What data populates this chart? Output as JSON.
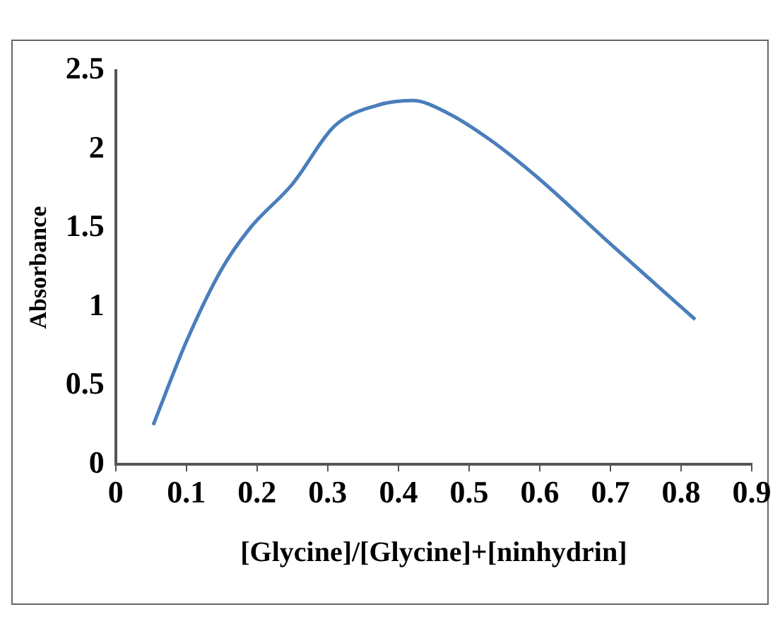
{
  "chart_data": {
    "type": "line",
    "xlabel": "[Glycine]/[Glycine]+[ninhydrin]",
    "ylabel": "Absorbance",
    "x": [
      0.053,
      0.1,
      0.15,
      0.19,
      0.25,
      0.31,
      0.37,
      0.42,
      0.47,
      0.53,
      0.6,
      0.7,
      0.82
    ],
    "series": [
      {
        "color": "#4a7ebb",
        "values": [
          0.25,
          0.78,
          1.24,
          1.5,
          1.78,
          2.15,
          2.28,
          2.31,
          2.23,
          2.06,
          1.81,
          1.4,
          0.92
        ]
      }
    ],
    "xlim": [
      0,
      0.9
    ],
    "xticks": [
      0,
      0.1,
      0.2,
      0.3,
      0.4,
      0.5,
      0.6,
      0.7,
      0.8,
      0.9
    ],
    "ylim": [
      0,
      2.5
    ],
    "yticks": [
      0,
      0.5,
      1,
      1.5,
      2,
      2.5
    ],
    "grid": false,
    "legend": false,
    "marker": "none",
    "line_style": "solid"
  }
}
